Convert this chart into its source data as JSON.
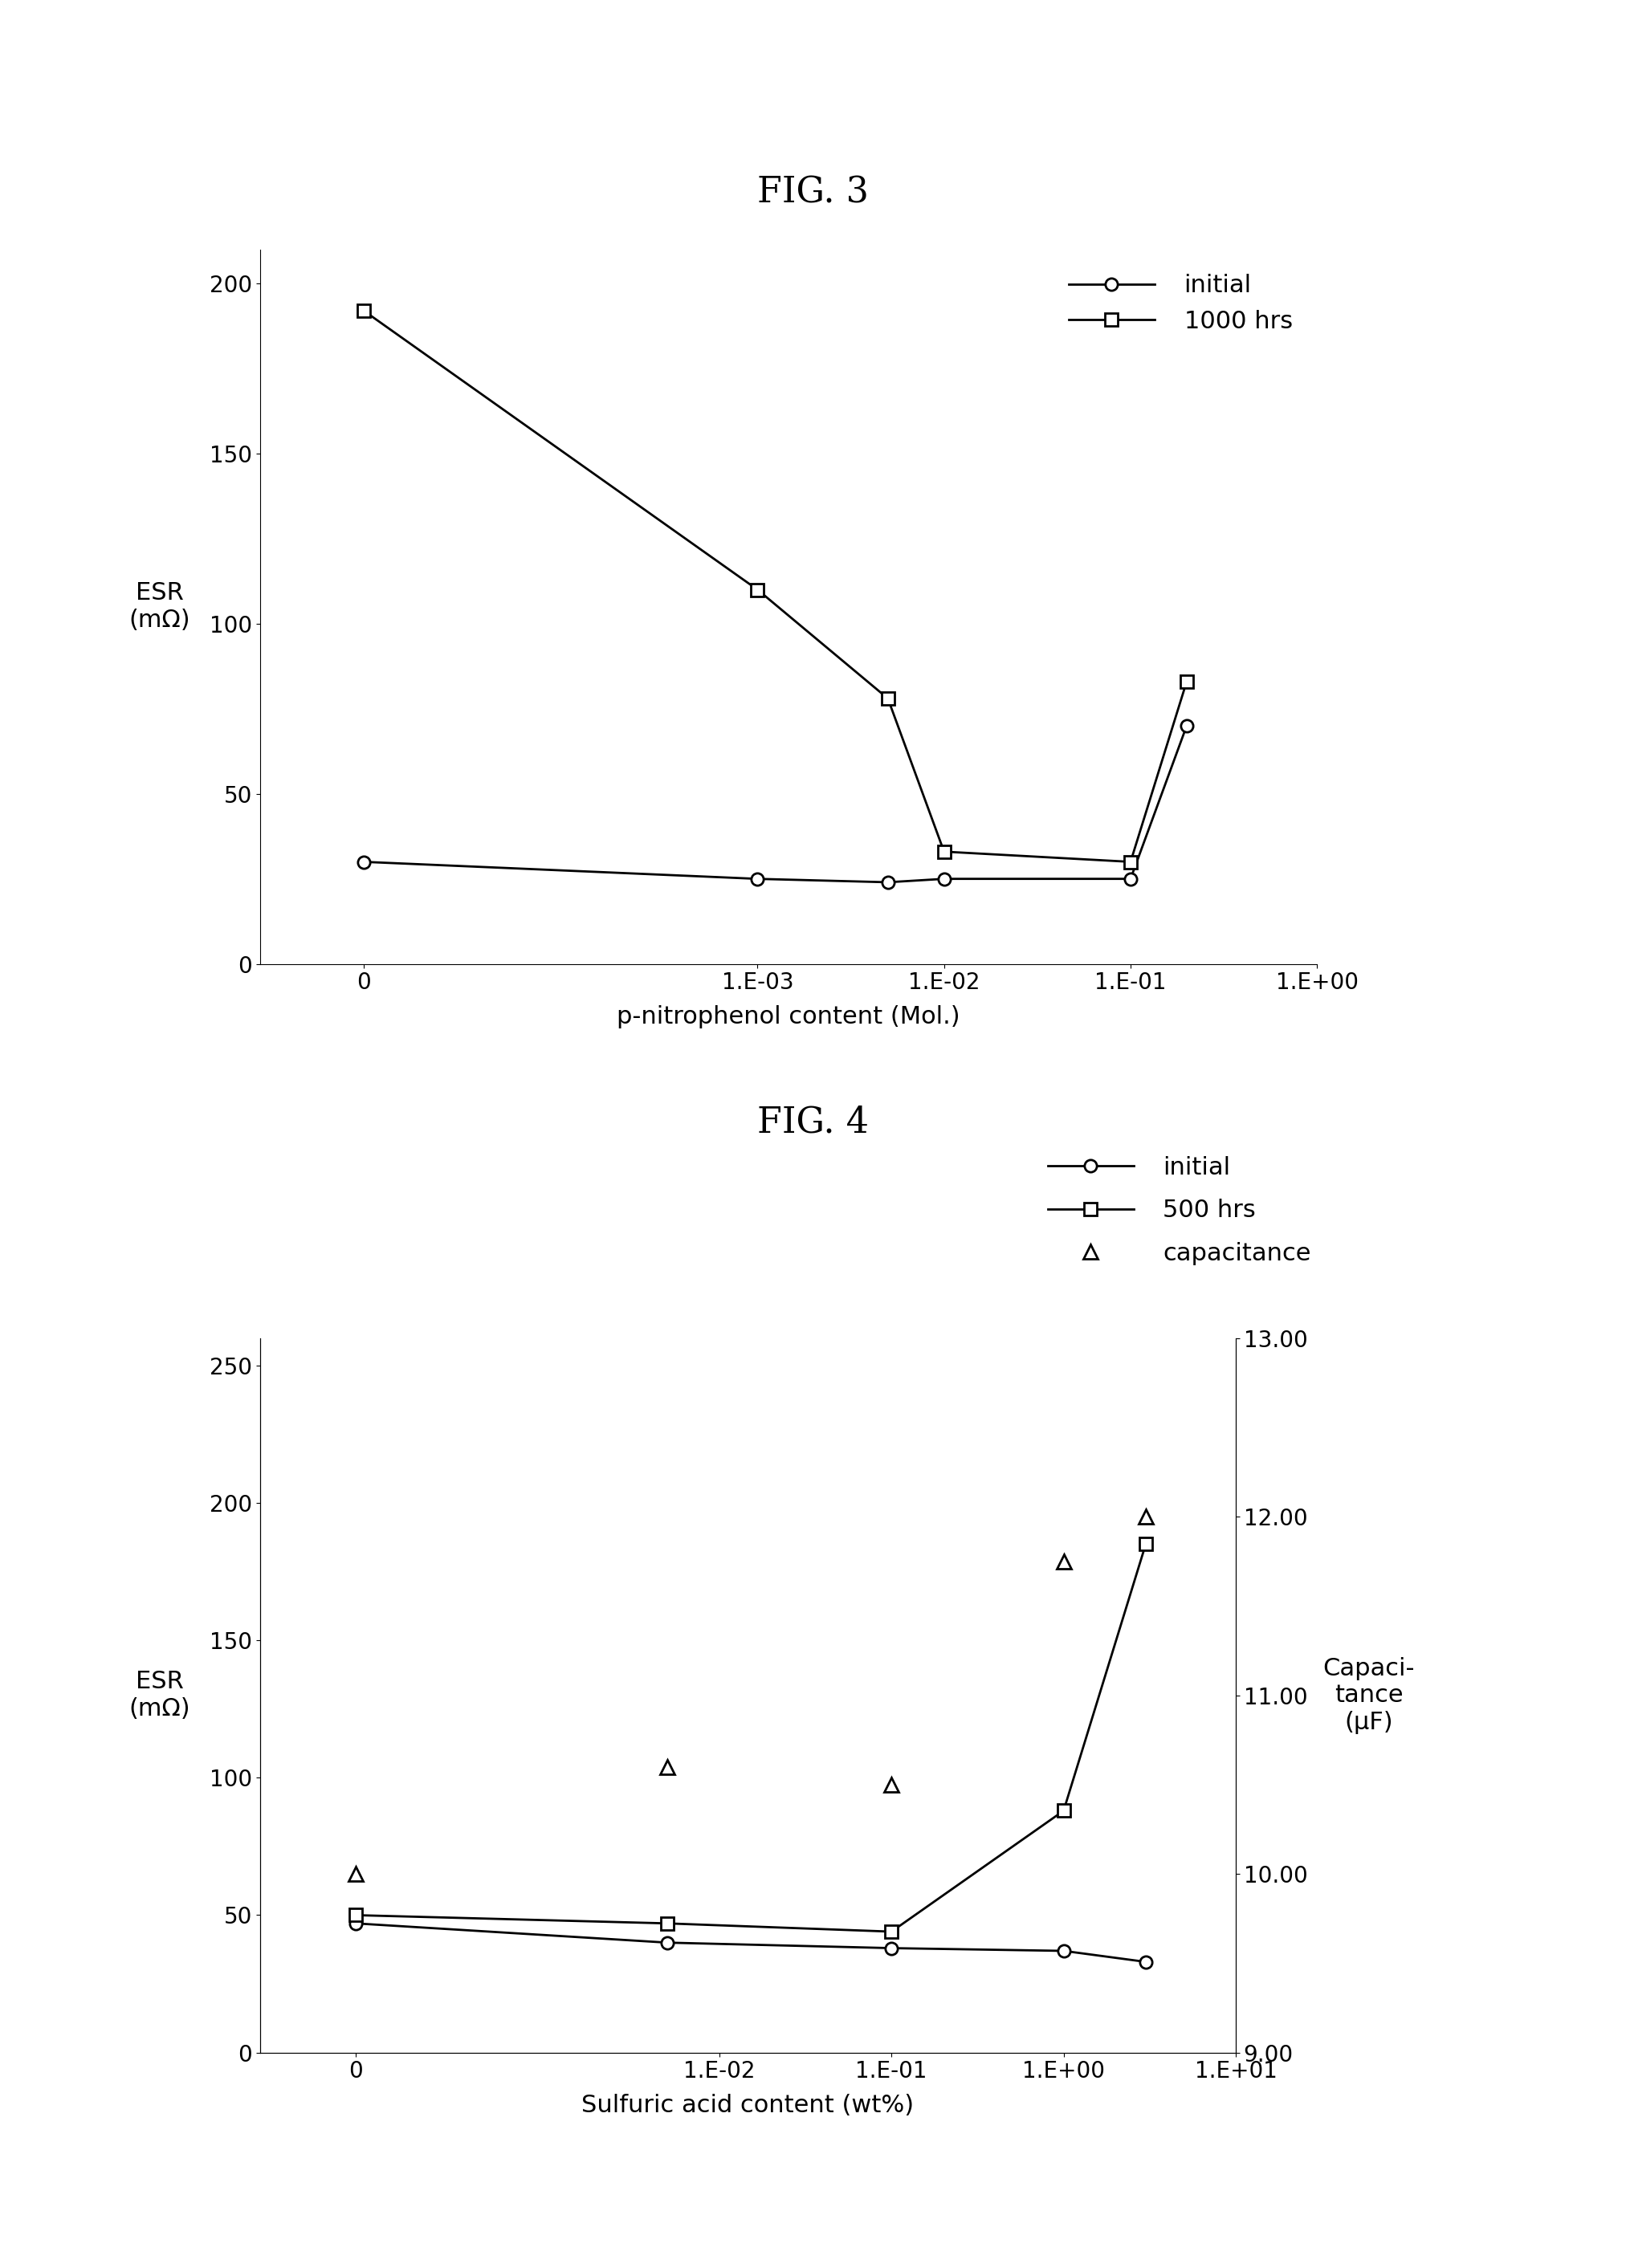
{
  "fig3": {
    "title": "FIG. 3",
    "xlabel": "p-nitrophenol content (Mol.)",
    "ylabel_line1": "ESR",
    "ylabel_line2": "(mΩ)",
    "ylim": [
      0,
      210
    ],
    "yticks": [
      0,
      50,
      100,
      150,
      200
    ],
    "x_tick_labels": [
      "0",
      "1.E-03",
      "1.E-02",
      "1.E-01",
      "1.E+00"
    ],
    "x_tick_positions": [
      0,
      0.001,
      0.01,
      0.1,
      1.0
    ],
    "initial_x": [
      0,
      0.001,
      0.005,
      0.01,
      0.1,
      0.2
    ],
    "initial_y": [
      30,
      25,
      24,
      25,
      25,
      70
    ],
    "hrs1000_x": [
      0,
      0.001,
      0.005,
      0.01,
      0.1,
      0.2
    ],
    "hrs1000_y": [
      192,
      110,
      78,
      33,
      30,
      83
    ],
    "legend_initial": "initial",
    "legend_1000hrs": "1000 hrs",
    "xlim_left": -5e-05,
    "xlim_right": 1.0
  },
  "fig4": {
    "title": "FIG. 4",
    "xlabel": "Sulfuric acid content (wt%)",
    "ylabel_line1": "ESR",
    "ylabel_line2": "(mΩ)",
    "ylabel2_line1": "Capaci-",
    "ylabel2_line2": "tance",
    "ylabel2_line3": "(μF)",
    "ylim": [
      0,
      260
    ],
    "yticks": [
      0,
      50,
      100,
      150,
      200,
      250
    ],
    "ylim2": [
      9.0,
      13.0
    ],
    "yticks2": [
      9.0,
      10.0,
      11.0,
      12.0,
      13.0
    ],
    "x_tick_labels": [
      "0",
      "1.E-02",
      "1.E-01",
      "1.E+00",
      "1.E+01"
    ],
    "x_tick_positions": [
      0,
      0.01,
      0.1,
      1.0,
      10.0
    ],
    "initial_x": [
      0,
      0.005,
      0.1,
      1.0,
      3.0
    ],
    "initial_y": [
      47,
      40,
      38,
      37,
      33
    ],
    "hrs500_x": [
      0,
      0.005,
      0.1,
      1.0,
      3.0
    ],
    "hrs500_y": [
      50,
      47,
      44,
      88,
      185
    ],
    "cap_x": [
      0,
      0.005,
      0.1,
      1.0,
      3.0
    ],
    "cap_y_uF": [
      10.0,
      10.6,
      10.5,
      11.75,
      12.0
    ],
    "legend_initial": "initial",
    "legend_500hrs": "500 hrs",
    "legend_cap": "capacitance",
    "xlim_left": -0.0005,
    "xlim_right": 10.0
  },
  "background_color": "#ffffff",
  "line_color": "#000000",
  "title_fontsize": 32,
  "label_fontsize": 22,
  "tick_fontsize": 20,
  "legend_fontsize": 22
}
